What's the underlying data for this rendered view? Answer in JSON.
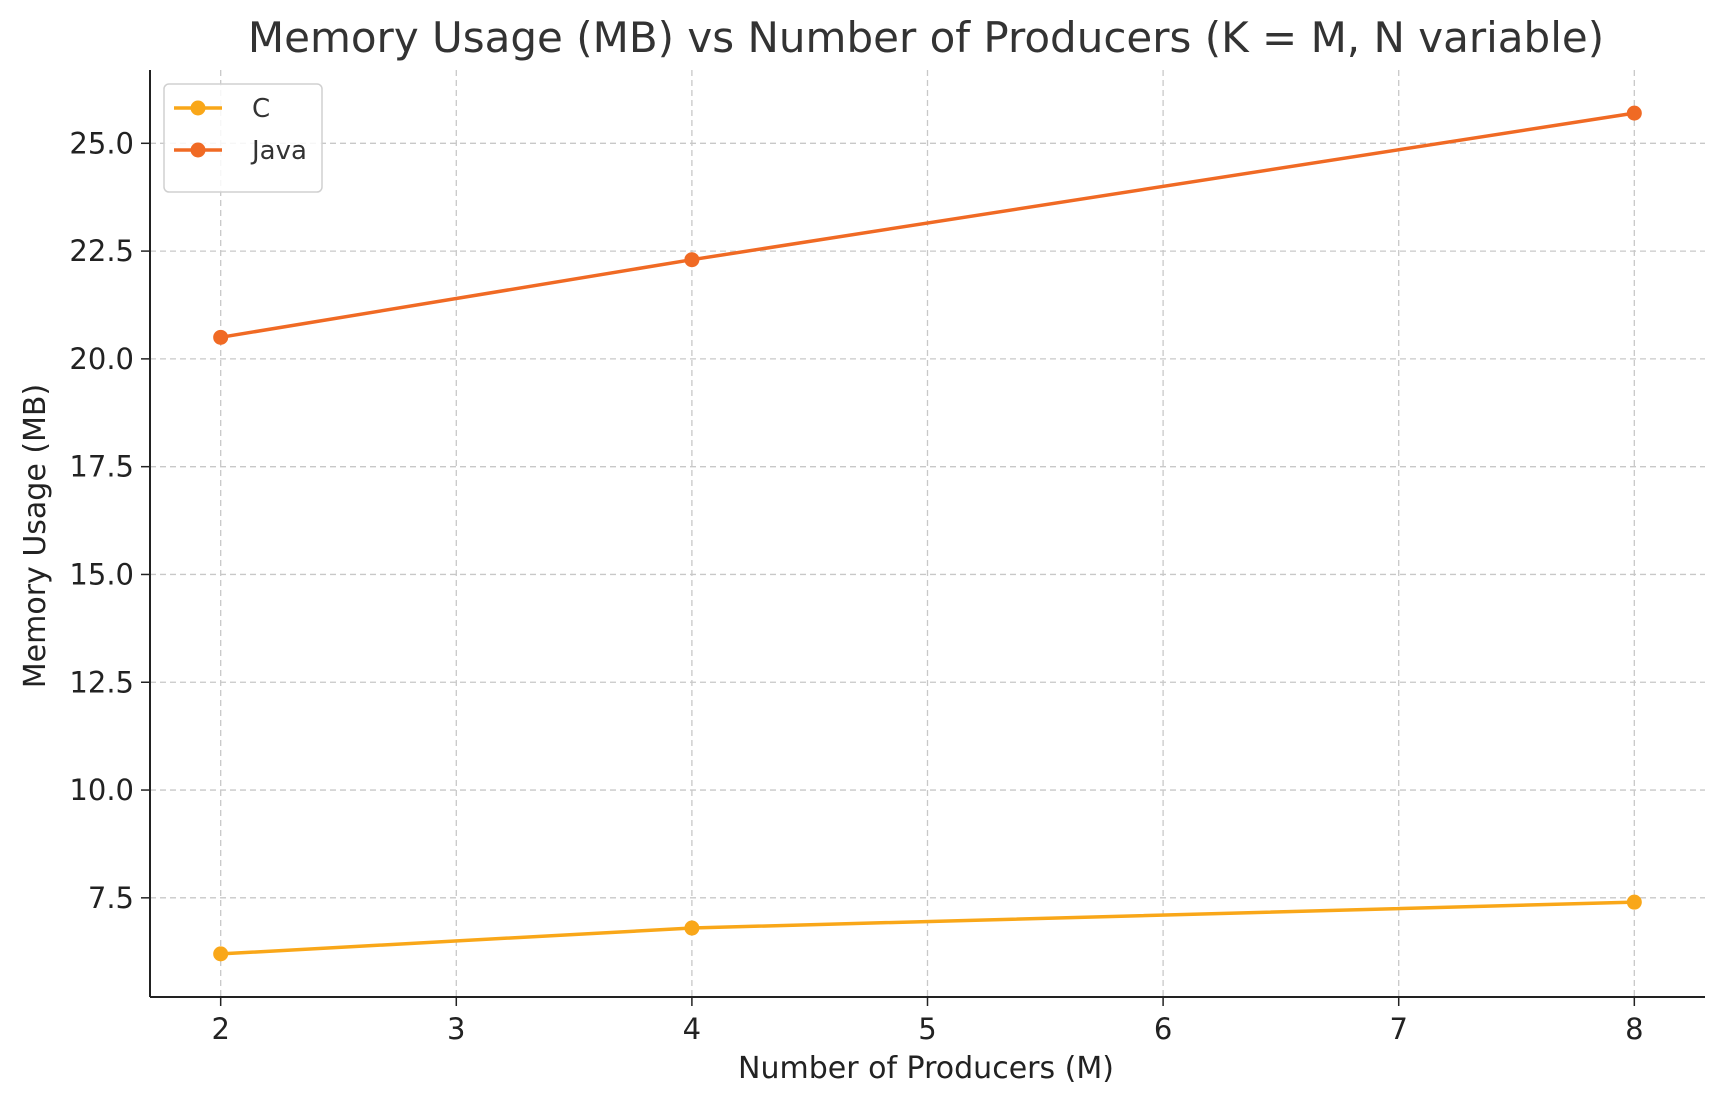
{
  "chart_data": {
    "type": "line",
    "title": "Memory Usage (MB) vs Number of Producers (K = M, N variable)",
    "xlabel": "Number of Producers (M)",
    "ylabel": "Memory Usage (MB)",
    "x": [
      2,
      4,
      8
    ],
    "xlim": [
      1.7,
      8.3
    ],
    "ylim": [
      5.2,
      26.7
    ],
    "xticks": [
      2,
      3,
      4,
      5,
      6,
      7,
      8
    ],
    "xtick_labels": [
      "2",
      "3",
      "4",
      "5",
      "6",
      "7",
      "8"
    ],
    "yticks": [
      7.5,
      10.0,
      12.5,
      15.0,
      17.5,
      20.0,
      22.5,
      25.0
    ],
    "ytick_labels": [
      "7.5",
      "10.0",
      "12.5",
      "15.0",
      "17.5",
      "20.0",
      "22.5",
      "25.0"
    ],
    "grid": true,
    "legend_position": "top-left",
    "series": [
      {
        "name": "C",
        "values": [
          6.2,
          6.8,
          7.4
        ],
        "color": "#f9a719"
      },
      {
        "name": "Java",
        "values": [
          20.5,
          22.3,
          25.7
        ],
        "color": "#f06a24"
      }
    ]
  }
}
